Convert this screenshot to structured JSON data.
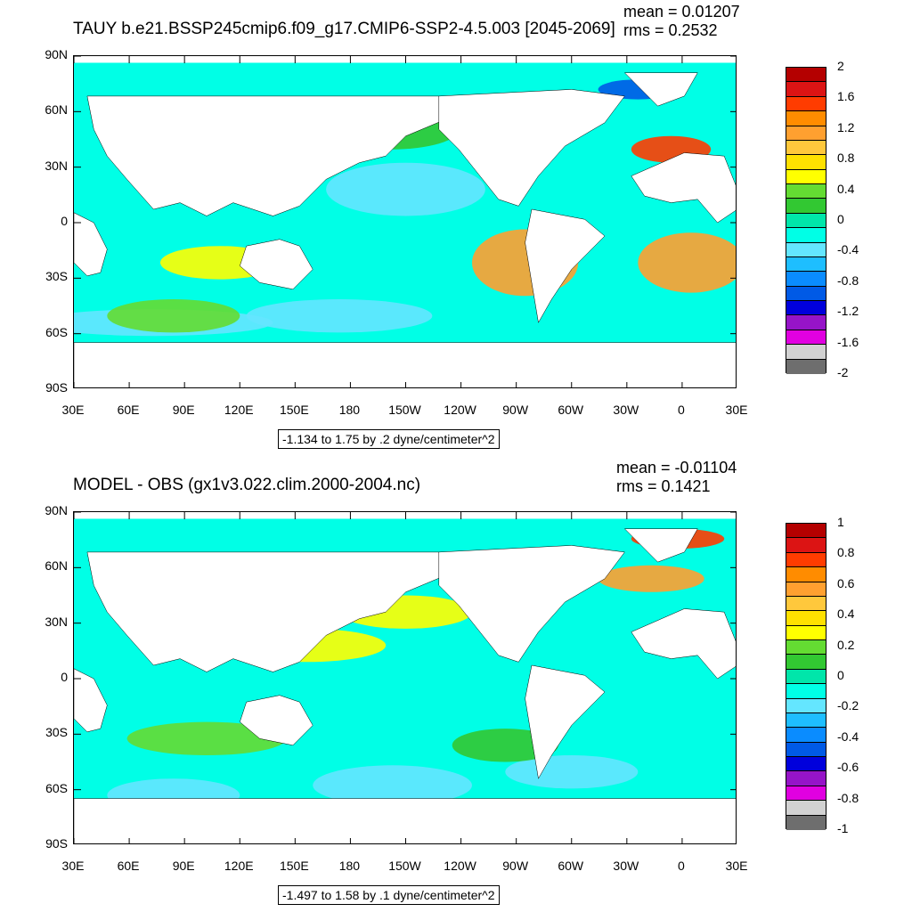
{
  "chart_data": [
    {
      "type": "heatmap",
      "title": "TAUY b.e21.BSSP245cmip6.f09_g17.CMIP6-SSP2-4.5.003 [2045-2069]",
      "mean_text": "mean = 0.01207",
      "rms_text": "rms = 0.2532",
      "y_ticks": [
        "90N",
        "60N",
        "30N",
        "0",
        "30S",
        "60S",
        "90S"
      ],
      "x_ticks": [
        "30E",
        "60E",
        "90E",
        "120E",
        "150E",
        "180",
        "150W",
        "120W",
        "90W",
        "60W",
        "30W",
        "0",
        "30E"
      ],
      "xlim": [
        30,
        390
      ],
      "ylim": [
        -90,
        90
      ],
      "range_text": "-1.134 to 1.75 by .2 dyne/centimeter^2",
      "colorbar": {
        "labels": [
          "2",
          "1.6",
          "1.2",
          "0.8",
          "0.4",
          "0",
          "-0.4",
          "-0.8",
          "-1.2",
          "-1.6",
          "-2"
        ],
        "colors": [
          "#b40000",
          "#dc1414",
          "#ff3c00",
          "#ff8c00",
          "#ffa030",
          "#ffc83c",
          "#ffe100",
          "#ffff00",
          "#64dc32",
          "#32c832",
          "#00e6aa",
          "#00ffe6",
          "#64e6ff",
          "#1ebeff",
          "#0a8cff",
          "#005ae6",
          "#0000dc",
          "#9614c8",
          "#e100e1",
          "#d2d2d2",
          "#6e6e6e"
        ]
      }
    },
    {
      "type": "heatmap",
      "title": "MODEL - OBS (gx1v3.022.clim.2000-2004.nc)",
      "mean_text": "mean = -0.01104",
      "rms_text": "rms = 0.1421",
      "y_ticks": [
        "90N",
        "60N",
        "30N",
        "0",
        "30S",
        "60S",
        "90S"
      ],
      "x_ticks": [
        "30E",
        "60E",
        "90E",
        "120E",
        "150E",
        "180",
        "150W",
        "120W",
        "90W",
        "60W",
        "30W",
        "0",
        "30E"
      ],
      "xlim": [
        30,
        390
      ],
      "ylim": [
        -90,
        90
      ],
      "range_text": "-1.497 to 1.58 by .1 dyne/centimeter^2",
      "colorbar": {
        "labels": [
          "1",
          "0.8",
          "0.6",
          "0.4",
          "0.2",
          "0",
          "-0.2",
          "-0.4",
          "-0.6",
          "-0.8",
          "-1"
        ],
        "colors": [
          "#b40000",
          "#dc1414",
          "#ff3c00",
          "#ff8c00",
          "#ffa030",
          "#ffc83c",
          "#ffe100",
          "#ffff00",
          "#64dc32",
          "#32c832",
          "#00e6aa",
          "#00ffe6",
          "#64e6ff",
          "#1ebeff",
          "#0a8cff",
          "#005ae6",
          "#0000dc",
          "#9614c8",
          "#e100e1",
          "#d2d2d2",
          "#6e6e6e"
        ]
      }
    }
  ]
}
